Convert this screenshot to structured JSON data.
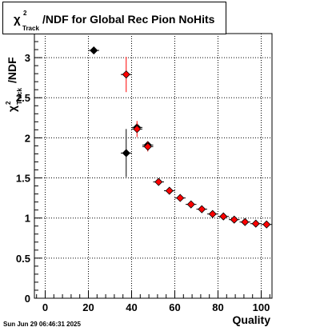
{
  "title": {
    "symbol": "χ",
    "superscript": "2",
    "subscript": "Track",
    "text": "/NDF for Global Rec Pion NoHits"
  },
  "timestamp": "Sun Jun 29 06:46:31 2025",
  "chart_data": {
    "type": "scatter",
    "title": "χ²Track/NDF for Global Rec Pion NoHits",
    "xlabel": "Quality",
    "ylabel": "χ²Track/NDF",
    "ylabel_parts": {
      "symbol": "χ",
      "superscript": "2",
      "subscript": "Track",
      "suffix": "/NDF"
    },
    "xlim": [
      -5,
      105
    ],
    "ylim": [
      0,
      3.3
    ],
    "x_ticks": [
      0,
      20,
      40,
      60,
      80,
      100
    ],
    "y_ticks": [
      0,
      0.5,
      1,
      1.5,
      2,
      2.5,
      3
    ],
    "x_tick_labels": [
      "0",
      "20",
      "40",
      "60",
      "80",
      "100"
    ],
    "y_tick_labels": [
      "0",
      "0.5",
      "1",
      "1.5",
      "2",
      "2.5",
      "3"
    ],
    "grid": true,
    "series": [
      {
        "color": "#000000",
        "points": [
          {
            "x": 22.5,
            "y": 3.09,
            "xerr": 2.5,
            "yerr": 0.0
          },
          {
            "x": 37.5,
            "y": 1.81,
            "xerr": 2.5,
            "yerr": 0.3
          },
          {
            "x": 42.5,
            "y": 2.13,
            "xerr": 2.5,
            "yerr": 0.05
          },
          {
            "x": 47.5,
            "y": 1.91,
            "xerr": 2.5,
            "yerr": 0.04
          }
        ]
      },
      {
        "color": "#ff0000",
        "points": [
          {
            "x": 37.5,
            "y": 2.79,
            "xerr": 2.5,
            "yerr": 0.22
          },
          {
            "x": 42.5,
            "y": 2.11,
            "xerr": 2.5,
            "yerr": 0.1
          },
          {
            "x": 47.5,
            "y": 1.89,
            "xerr": 2.5,
            "yerr": 0.06
          },
          {
            "x": 52.5,
            "y": 1.45,
            "xerr": 2.5,
            "yerr": 0.02
          },
          {
            "x": 57.5,
            "y": 1.34,
            "xerr": 2.5,
            "yerr": 0.01
          },
          {
            "x": 62.5,
            "y": 1.25,
            "xerr": 2.5,
            "yerr": 0.01
          },
          {
            "x": 67.5,
            "y": 1.17,
            "xerr": 2.5,
            "yerr": 0.01
          },
          {
            "x": 72.5,
            "y": 1.11,
            "xerr": 2.5,
            "yerr": 0.01
          },
          {
            "x": 77.5,
            "y": 1.05,
            "xerr": 2.5,
            "yerr": 0.01
          },
          {
            "x": 82.5,
            "y": 1.02,
            "xerr": 2.5,
            "yerr": 0.01
          },
          {
            "x": 87.5,
            "y": 0.98,
            "xerr": 2.5,
            "yerr": 0.01
          },
          {
            "x": 92.5,
            "y": 0.95,
            "xerr": 2.5,
            "yerr": 0.01
          },
          {
            "x": 97.5,
            "y": 0.93,
            "xerr": 2.5,
            "yerr": 0.01
          },
          {
            "x": 102.5,
            "y": 0.92,
            "xerr": 2.5,
            "yerr": 0.01
          }
        ]
      }
    ]
  }
}
